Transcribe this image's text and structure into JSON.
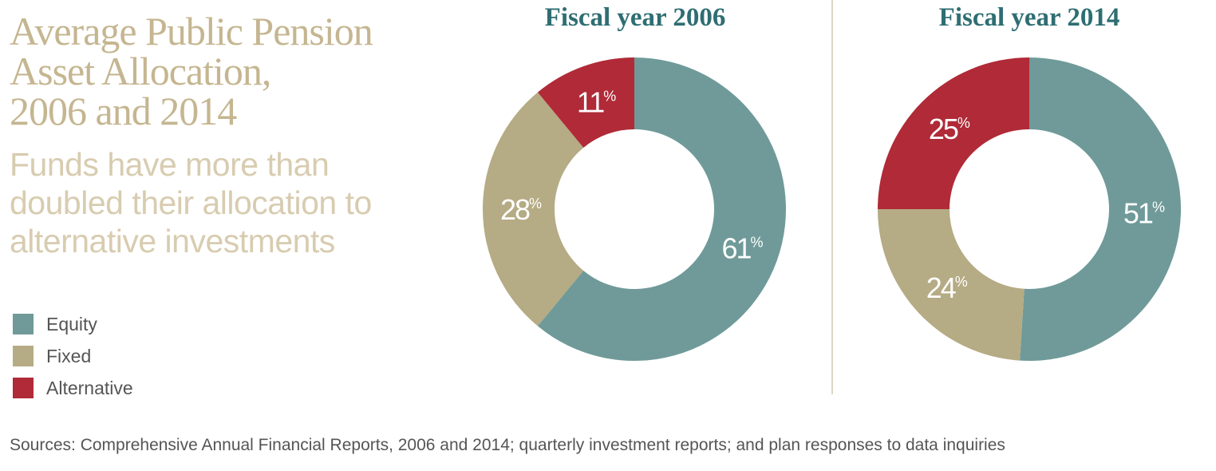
{
  "title": "Average Public Pension\nAsset Allocation,\n2006 and 2014",
  "subtitle": "Funds have more than\ndoubled their allocation to\nalternative investments",
  "legend": [
    {
      "label": "Equity",
      "color": "#6f9a99"
    },
    {
      "label": "Fixed",
      "color": "#b5ab84"
    },
    {
      "label": "Alternative",
      "color": "#b02a37"
    }
  ],
  "sources": "Sources: Comprehensive Annual Financial Reports, 2006 and 2014; quarterly investment reports; and plan responses to data inquiries",
  "chart_data": [
    {
      "type": "pie",
      "title": "Fiscal year 2006",
      "categories": [
        "Equity",
        "Fixed",
        "Alternative"
      ],
      "values": [
        61,
        28,
        11
      ],
      "labels": [
        "61",
        "28",
        "11"
      ],
      "colors": [
        "#6f9a99",
        "#b5ab84",
        "#b02a37"
      ]
    },
    {
      "type": "pie",
      "title": "Fiscal year 2014",
      "categories": [
        "Equity",
        "Fixed",
        "Alternative"
      ],
      "values": [
        51,
        24,
        25
      ],
      "labels": [
        "51",
        "24",
        "25"
      ],
      "colors": [
        "#6f9a99",
        "#b5ab84",
        "#b02a37"
      ]
    }
  ]
}
